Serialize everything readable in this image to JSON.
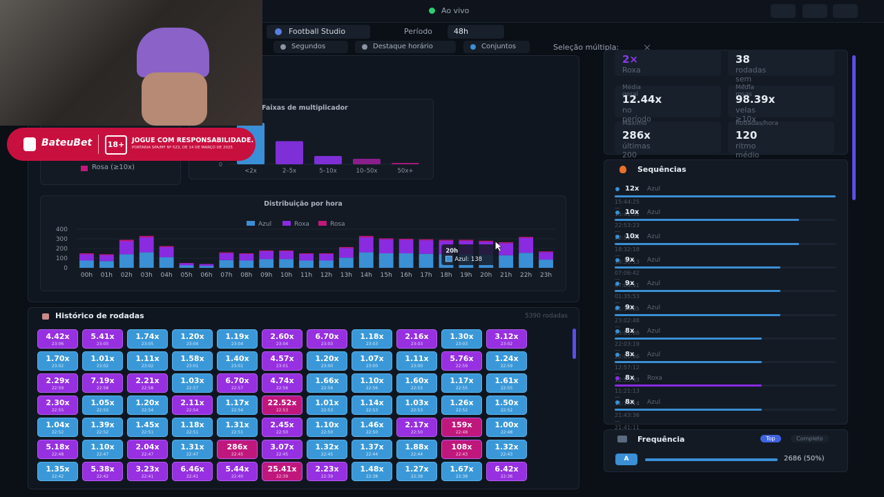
{
  "header": {
    "status": "Ao vivo",
    "game": "Football Studio",
    "period_label": "Período",
    "period": "48h",
    "tabs": [
      "Segundos",
      "Destaque horário",
      "Conjuntos"
    ],
    "multi_select": "Seleção múltipla:"
  },
  "overlay": {
    "brand": "BateuBet",
    "age": "18+",
    "notice": "JOGUE COM RESPONSABILIDADE.",
    "legal": "PORTARIA SPA/MF Nº 523, DE 14 DE MARÇO DE 2025"
  },
  "legend_card": {
    "item": "Rosa (≥10x)"
  },
  "bands_chart": {
    "type": "bar",
    "title": "Faixas de multiplicador",
    "categories": [
      "<2x",
      "2–5x",
      "5–10x",
      "10–50x",
      "50x+"
    ],
    "values": [
      2686,
      1500,
      540,
      360,
      90
    ],
    "colors": [
      "#3a8fd6",
      "#7e2fd6",
      "#7e2fd6",
      "#8a1f8c",
      "#a3177d"
    ],
    "ylim": [
      0,
      3000
    ],
    "yticks": [
      0
    ]
  },
  "hourly_chart": {
    "type": "bar",
    "title": "Distribuição por hora",
    "stacked": true,
    "categories": [
      "00h",
      "01h",
      "02h",
      "03h",
      "04h",
      "05h",
      "06h",
      "07h",
      "08h",
      "09h",
      "10h",
      "11h",
      "12h",
      "13h",
      "14h",
      "15h",
      "16h",
      "17h",
      "18h",
      "19h",
      "20h",
      "21h",
      "22h",
      "23h"
    ],
    "series": [
      {
        "name": "Azul",
        "color": "#3b8fd4",
        "values": [
          75,
          70,
          140,
          160,
          110,
          25,
          20,
          80,
          75,
          90,
          90,
          75,
          75,
          105,
          160,
          150,
          150,
          145,
          140,
          140,
          138,
          130,
          155,
          85
        ]
      },
      {
        "name": "Roxa",
        "color": "#8a2be2",
        "values": [
          65,
          62,
          135,
          155,
          105,
          22,
          18,
          72,
          68,
          82,
          82,
          68,
          68,
          100,
          155,
          145,
          140,
          140,
          140,
          140,
          132,
          125,
          155,
          78
        ]
      },
      {
        "name": "Rosa",
        "color": "#c2187a",
        "values": [
          10,
          8,
          15,
          15,
          10,
          3,
          2,
          8,
          7,
          8,
          8,
          7,
          7,
          10,
          15,
          10,
          10,
          10,
          10,
          10,
          10,
          10,
          10,
          7
        ]
      }
    ],
    "ylim": [
      0,
      400
    ],
    "yticks": [
      0,
      100,
      200,
      300,
      400
    ],
    "grid": true,
    "tooltip": {
      "title": "20h",
      "text": "Azul: 138"
    }
  },
  "history": {
    "title": "Histórico de rodadas",
    "count": "5390 rodadas",
    "tiles": [
      {
        "v": "4.42x",
        "t": "23:06",
        "c": "p"
      },
      {
        "v": "5.41x",
        "t": "23:05",
        "c": "p"
      },
      {
        "v": "1.74x",
        "t": "23:05",
        "c": "b"
      },
      {
        "v": "1.20x",
        "t": "23:04",
        "c": "b"
      },
      {
        "v": "1.19x",
        "t": "23:04",
        "c": "b"
      },
      {
        "v": "2.60x",
        "t": "23:04",
        "c": "p"
      },
      {
        "v": "6.70x",
        "t": "23:03",
        "c": "p"
      },
      {
        "v": "1.18x",
        "t": "23:03",
        "c": "b"
      },
      {
        "v": "2.16x",
        "t": "23:03",
        "c": "p"
      },
      {
        "v": "1.30x",
        "t": "23:03",
        "c": "b"
      },
      {
        "v": "3.12x",
        "t": "23:02",
        "c": "p"
      },
      {
        "v": "1.70x",
        "t": "23:02",
        "c": "b"
      },
      {
        "v": "1.01x",
        "t": "23:02",
        "c": "b"
      },
      {
        "v": "1.11x",
        "t": "23:02",
        "c": "b"
      },
      {
        "v": "1.58x",
        "t": "23:01",
        "c": "b"
      },
      {
        "v": "1.40x",
        "t": "23:01",
        "c": "b"
      },
      {
        "v": "4.57x",
        "t": "23:01",
        "c": "p"
      },
      {
        "v": "1.20x",
        "t": "23:00",
        "c": "b"
      },
      {
        "v": "1.07x",
        "t": "23:00",
        "c": "b"
      },
      {
        "v": "1.11x",
        "t": "23:00",
        "c": "b"
      },
      {
        "v": "5.76x",
        "t": "22:59",
        "c": "p"
      },
      {
        "v": "1.24x",
        "t": "22:59",
        "c": "b"
      },
      {
        "v": "2.29x",
        "t": "22:59",
        "c": "p"
      },
      {
        "v": "7.19x",
        "t": "22:58",
        "c": "p"
      },
      {
        "v": "2.21x",
        "t": "22:58",
        "c": "p"
      },
      {
        "v": "1.03x",
        "t": "22:57",
        "c": "b"
      },
      {
        "v": "6.70x",
        "t": "22:57",
        "c": "p"
      },
      {
        "v": "4.74x",
        "t": "22:56",
        "c": "p"
      },
      {
        "v": "1.66x",
        "t": "22:56",
        "c": "b"
      },
      {
        "v": "1.10x",
        "t": "22:56",
        "c": "b"
      },
      {
        "v": "1.60x",
        "t": "22:55",
        "c": "b"
      },
      {
        "v": "1.17x",
        "t": "22:55",
        "c": "b"
      },
      {
        "v": "1.61x",
        "t": "22:55",
        "c": "b"
      },
      {
        "v": "2.30x",
        "t": "22:55",
        "c": "p"
      },
      {
        "v": "1.05x",
        "t": "22:55",
        "c": "b"
      },
      {
        "v": "1.20x",
        "t": "22:54",
        "c": "b"
      },
      {
        "v": "2.11x",
        "t": "22:54",
        "c": "p"
      },
      {
        "v": "1.17x",
        "t": "22:54",
        "c": "b"
      },
      {
        "v": "22.52x",
        "t": "22:53",
        "c": "r"
      },
      {
        "v": "1.01x",
        "t": "22:53",
        "c": "b"
      },
      {
        "v": "1.14x",
        "t": "22:53",
        "c": "b"
      },
      {
        "v": "1.03x",
        "t": "22:53",
        "c": "b"
      },
      {
        "v": "1.26x",
        "t": "22:52",
        "c": "b"
      },
      {
        "v": "1.50x",
        "t": "22:52",
        "c": "b"
      },
      {
        "v": "1.04x",
        "t": "22:52",
        "c": "b"
      },
      {
        "v": "1.39x",
        "t": "22:52",
        "c": "b"
      },
      {
        "v": "1.45x",
        "t": "22:51",
        "c": "b"
      },
      {
        "v": "1.18x",
        "t": "22:51",
        "c": "b"
      },
      {
        "v": "1.31x",
        "t": "22:51",
        "c": "b"
      },
      {
        "v": "2.45x",
        "t": "22:50",
        "c": "p"
      },
      {
        "v": "1.10x",
        "t": "22:50",
        "c": "b"
      },
      {
        "v": "1.46x",
        "t": "22:50",
        "c": "b"
      },
      {
        "v": "2.17x",
        "t": "22:50",
        "c": "p"
      },
      {
        "v": "159x",
        "t": "22:48",
        "c": "r"
      },
      {
        "v": "1.00x",
        "t": "22:48",
        "c": "b"
      },
      {
        "v": "5.18x",
        "t": "22:48",
        "c": "p"
      },
      {
        "v": "1.10x",
        "t": "22:47",
        "c": "b"
      },
      {
        "v": "2.04x",
        "t": "22:47",
        "c": "p"
      },
      {
        "v": "1.31x",
        "t": "22:47",
        "c": "b"
      },
      {
        "v": "286x",
        "t": "22:45",
        "c": "r"
      },
      {
        "v": "3.07x",
        "t": "22:45",
        "c": "p"
      },
      {
        "v": "1.32x",
        "t": "22:45",
        "c": "b"
      },
      {
        "v": "1.37x",
        "t": "22:44",
        "c": "b"
      },
      {
        "v": "1.88x",
        "t": "22:44",
        "c": "b"
      },
      {
        "v": "108x",
        "t": "22:43",
        "c": "r"
      },
      {
        "v": "1.32x",
        "t": "22:43",
        "c": "b"
      },
      {
        "v": "1.35x",
        "t": "22:42",
        "c": "b"
      },
      {
        "v": "5.38x",
        "t": "22:42",
        "c": "p"
      },
      {
        "v": "3.23x",
        "t": "22:41",
        "c": "p"
      },
      {
        "v": "6.46x",
        "t": "22:41",
        "c": "p"
      },
      {
        "v": "5.44x",
        "t": "22:40",
        "c": "p"
      },
      {
        "v": "25.41x",
        "t": "22:39",
        "c": "r"
      },
      {
        "v": "2.23x",
        "t": "22:39",
        "c": "p"
      },
      {
        "v": "1.48x",
        "t": "22:38",
        "c": "b"
      },
      {
        "v": "1.27x",
        "t": "22:38",
        "c": "b"
      },
      {
        "v": "1.67x",
        "t": "22:38",
        "c": "b"
      },
      {
        "v": "6.42x",
        "t": "22:36",
        "c": "p"
      }
    ]
  },
  "stats": [
    {
      "value": "2×",
      "note": "Roxa"
    },
    {
      "value": "38",
      "note": "rodadas sem ≥10x"
    },
    {
      "label": "Média geral",
      "value": "12.44x",
      "note": "no período"
    },
    {
      "label": "Média rosas",
      "value": "98.39x",
      "note": "velas ≥10x"
    },
    {
      "label": "Máximo",
      "value": "286x",
      "note": "últimas 200"
    },
    {
      "label": "Rodadas/hora",
      "value": "120",
      "note": "ritmo médio"
    }
  ],
  "sequences": {
    "title": "Sequências",
    "max": 12,
    "items": [
      {
        "count": {
          "value": 12,
          "label": "12x"
        },
        "color": "Azul",
        "range": "15:44:25 — 15:41:51"
      },
      {
        "count": {
          "value": 10,
          "label": "10x"
        },
        "color": "Azul",
        "range": "22:53:23 — 22:51:14"
      },
      {
        "count": {
          "value": 10,
          "label": "10x"
        },
        "color": "Azul",
        "range": "18:32:18 — 18:30:13"
      },
      {
        "count": {
          "value": 9,
          "label": "9x"
        },
        "color": "Azul",
        "range": "07:06:42 — 07:04:51"
      },
      {
        "count": {
          "value": 9,
          "label": "9x"
        },
        "color": "Azul",
        "range": "01:35:53 — 01:34:05"
      },
      {
        "count": {
          "value": 9,
          "label": "9x"
        },
        "color": "Azul",
        "range": "23:02:48 — 23:01:08"
      },
      {
        "count": {
          "value": 8,
          "label": "8x"
        },
        "color": "Azul",
        "range": "22:03:19 — 22:01:36"
      },
      {
        "count": {
          "value": 8,
          "label": "8x"
        },
        "color": "Azul",
        "range": "12:57:12 — 12:55:43"
      },
      {
        "count": {
          "value": 8,
          "label": "8x"
        },
        "color": "Roxa",
        "range": "11:21:13 — 11:18:14"
      },
      {
        "count": {
          "value": 8,
          "label": "8x"
        },
        "color": "Azul",
        "range": "21:43:36 — 21:41:11"
      }
    ]
  },
  "frequency": {
    "title": "Frequência",
    "tabs": [
      "Top",
      "Completo"
    ],
    "rows": [
      {
        "key": "A",
        "value": "2686 (50%)"
      }
    ]
  }
}
